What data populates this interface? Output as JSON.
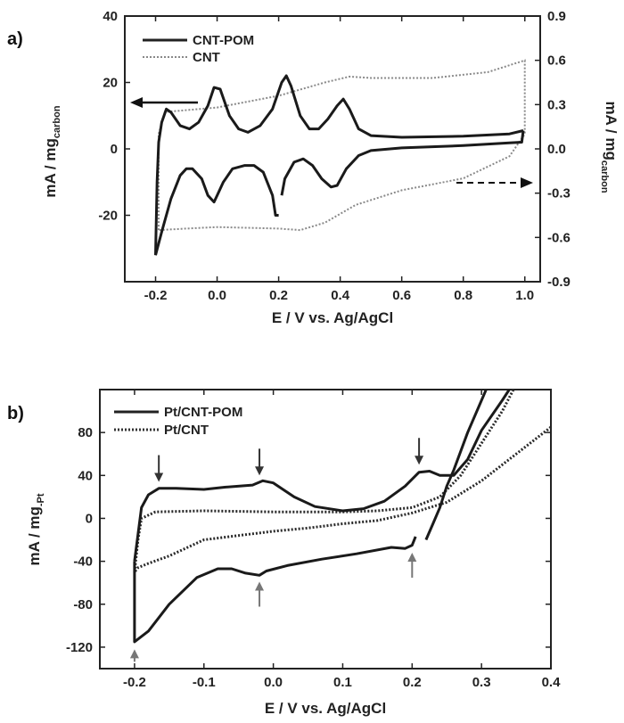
{
  "chart_data": [
    {
      "type": "line",
      "panel_label": "a)",
      "xlabel": "E / V  vs.  Ag/AgCl",
      "ylabel_left": "mA / mg",
      "ylabel_left_sub": "carbon",
      "ylabel_right": "mA / mg",
      "ylabel_right_sub": "carbon",
      "xlim": [
        -0.3,
        1.05
      ],
      "ylim_left": [
        -40,
        40
      ],
      "ylim_right": [
        -0.9,
        0.9
      ],
      "xticks": [
        "-0.2",
        "0.0",
        "0.2",
        "0.4",
        "0.6",
        "0.8",
        "1.0"
      ],
      "yticks_left": [
        "-20",
        "0",
        "20",
        "40"
      ],
      "yticks_right": [
        "-0.9",
        "-0.6",
        "-0.3",
        "0.0",
        "0.3",
        "0.6",
        "0.9"
      ],
      "series": [
        {
          "name": "CNT-POM",
          "style": "solid",
          "axis": "left",
          "anodic": [
            [
              -0.2,
              -32
            ],
            [
              -0.195,
              -10
            ],
            [
              -0.19,
              2
            ],
            [
              -0.18,
              8
            ],
            [
              -0.165,
              12
            ],
            [
              -0.15,
              11
            ],
            [
              -0.12,
              7
            ],
            [
              -0.09,
              6
            ],
            [
              -0.06,
              8
            ],
            [
              -0.03,
              13
            ],
            [
              -0.01,
              18.5
            ],
            [
              0.01,
              18
            ],
            [
              0.04,
              10
            ],
            [
              0.07,
              6
            ],
            [
              0.1,
              5
            ],
            [
              0.14,
              7
            ],
            [
              0.18,
              12
            ],
            [
              0.21,
              20
            ],
            [
              0.225,
              22
            ],
            [
              0.24,
              19
            ],
            [
              0.27,
              10
            ],
            [
              0.3,
              6
            ],
            [
              0.33,
              6
            ],
            [
              0.36,
              9
            ],
            [
              0.39,
              13
            ],
            [
              0.41,
              15
            ],
            [
              0.43,
              12
            ],
            [
              0.46,
              6
            ],
            [
              0.5,
              4
            ],
            [
              0.6,
              3.5
            ],
            [
              0.8,
              3.8
            ],
            [
              0.95,
              4.5
            ],
            [
              0.995,
              5.5
            ]
          ],
          "cathodic": [
            [
              0.995,
              5.5
            ],
            [
              0.99,
              2
            ],
            [
              0.95,
              1.8
            ],
            [
              0.8,
              1
            ],
            [
              0.6,
              0.3
            ],
            [
              0.5,
              -0.5
            ],
            [
              0.46,
              -2
            ],
            [
              0.42,
              -6
            ],
            [
              0.39,
              -11
            ],
            [
              0.37,
              -11.5
            ],
            [
              0.34,
              -9
            ],
            [
              0.31,
              -5
            ],
            [
              0.28,
              -3
            ],
            [
              0.25,
              -4
            ],
            [
              0.22,
              -9
            ],
            [
              0.21,
              -14
            ]
          ],
          "cathodic_low": [
            [
              0.2,
              -20
            ],
            [
              0.19,
              -20
            ],
            [
              0.18,
              -14
            ],
            [
              0.15,
              -7
            ],
            [
              0.12,
              -5
            ],
            [
              0.09,
              -5
            ],
            [
              0.05,
              -6
            ],
            [
              0.02,
              -10
            ],
            [
              0.0,
              -14
            ],
            [
              -0.01,
              -16
            ],
            [
              -0.03,
              -14
            ],
            [
              -0.05,
              -9
            ],
            [
              -0.08,
              -6
            ],
            [
              -0.1,
              -6
            ],
            [
              -0.12,
              -8
            ],
            [
              -0.15,
              -15
            ],
            [
              -0.18,
              -25
            ],
            [
              -0.2,
              -32
            ]
          ]
        },
        {
          "name": "CNT",
          "style": "dotted",
          "axis": "right",
          "loop": [
            [
              -0.19,
              -0.55
            ],
            [
              -0.19,
              0.1
            ],
            [
              -0.17,
              0.25
            ],
            [
              0.0,
              0.28
            ],
            [
              0.2,
              0.36
            ],
            [
              0.35,
              0.45
            ],
            [
              0.43,
              0.49
            ],
            [
              0.5,
              0.48
            ],
            [
              0.7,
              0.48
            ],
            [
              0.88,
              0.52
            ],
            [
              1.0,
              0.6
            ],
            [
              1.0,
              0.1
            ],
            [
              0.95,
              -0.05
            ],
            [
              0.8,
              -0.2
            ],
            [
              0.6,
              -0.28
            ],
            [
              0.45,
              -0.38
            ],
            [
              0.35,
              -0.5
            ],
            [
              0.27,
              -0.55
            ],
            [
              0.2,
              -0.54
            ],
            [
              0.0,
              -0.53
            ],
            [
              -0.1,
              -0.54
            ],
            [
              -0.19,
              -0.55
            ]
          ]
        }
      ],
      "annotations": [
        "solid arrow pointing left to left axis at ~13 mA",
        "dashed arrow pointing right to right axis at ~-0.27 mA"
      ]
    },
    {
      "type": "line",
      "panel_label": "b)",
      "xlabel": "E / V  vs.  Ag/AgCl",
      "ylabel": "mA / mg",
      "ylabel_sub": "-Pt",
      "xlim": [
        -0.25,
        0.4
      ],
      "ylim": [
        -140,
        120
      ],
      "xticks": [
        "-0.2",
        "-0.1",
        "0.0",
        "0.1",
        "0.2",
        "0.3",
        "0.4"
      ],
      "yticks": [
        "-120",
        "-80",
        "-40",
        "0",
        "40",
        "80"
      ],
      "series": [
        {
          "name": "Pt/CNT-POM",
          "style": "solid",
          "anodic": [
            [
              -0.2,
              -40
            ],
            [
              -0.19,
              10
            ],
            [
              -0.18,
              22
            ],
            [
              -0.165,
              28
            ],
            [
              -0.14,
              28
            ],
            [
              -0.1,
              27
            ],
            [
              -0.07,
              29
            ],
            [
              -0.03,
              31
            ],
            [
              -0.015,
              35
            ],
            [
              0.0,
              33
            ],
            [
              0.03,
              20
            ],
            [
              0.06,
              11
            ],
            [
              0.1,
              7
            ],
            [
              0.13,
              9
            ],
            [
              0.16,
              16
            ],
            [
              0.19,
              30
            ],
            [
              0.21,
              43
            ],
            [
              0.225,
              44
            ],
            [
              0.24,
              40
            ],
            [
              0.26,
              40
            ],
            [
              0.28,
              55
            ],
            [
              0.3,
              82
            ],
            [
              0.33,
              110
            ],
            [
              0.36,
              140
            ]
          ],
          "reverse_high": [
            [
              0.32,
              140
            ],
            [
              0.3,
              110
            ],
            [
              0.28,
              80
            ],
            [
              0.26,
              45
            ],
            [
              0.25,
              30
            ],
            [
              0.24,
              10
            ],
            [
              0.23,
              -5
            ],
            [
              0.22,
              -20
            ]
          ],
          "cathodic": [
            [
              0.205,
              -17
            ],
            [
              0.2,
              -25
            ],
            [
              0.19,
              -28
            ],
            [
              0.17,
              -27
            ],
            [
              0.12,
              -33
            ],
            [
              0.07,
              -38
            ],
            [
              0.02,
              -44
            ],
            [
              -0.01,
              -49
            ],
            [
              -0.02,
              -53
            ],
            [
              -0.04,
              -51
            ],
            [
              -0.06,
              -47
            ],
            [
              -0.08,
              -47
            ],
            [
              -0.11,
              -55
            ],
            [
              -0.15,
              -80
            ],
            [
              -0.18,
              -105
            ],
            [
              -0.2,
              -115
            ],
            [
              -0.2,
              -40
            ]
          ]
        },
        {
          "name": "Pt/CNT",
          "style": "dotted",
          "anodic": [
            [
              -0.2,
              -50
            ],
            [
              -0.195,
              -20
            ],
            [
              -0.19,
              0
            ],
            [
              -0.17,
              6
            ],
            [
              -0.1,
              7
            ],
            [
              0.0,
              6
            ],
            [
              0.1,
              6
            ],
            [
              0.15,
              7
            ],
            [
              0.2,
              10
            ],
            [
              0.24,
              20
            ],
            [
              0.27,
              40
            ],
            [
              0.29,
              60
            ],
            [
              0.31,
              80
            ],
            [
              0.33,
              100
            ],
            [
              0.35,
              125
            ]
          ],
          "reverse": [
            [
              0.4,
              85
            ],
            [
              0.35,
              60
            ],
            [
              0.3,
              35
            ],
            [
              0.25,
              15
            ],
            [
              0.2,
              5
            ],
            [
              0.15,
              -2
            ],
            [
              0.1,
              -5
            ],
            [
              0.05,
              -9
            ],
            [
              0.0,
              -12
            ],
            [
              -0.05,
              -16
            ],
            [
              -0.1,
              -20
            ],
            [
              -0.15,
              -35
            ],
            [
              -0.18,
              -42
            ],
            [
              -0.195,
              -46
            ],
            [
              -0.2,
              -50
            ]
          ]
        }
      ],
      "annotations": [
        "down arrows above peaks at -0.165, -0.02, 0.21 V",
        "up arrows below features at -0.2, -0.02, 0.2 V"
      ]
    }
  ]
}
